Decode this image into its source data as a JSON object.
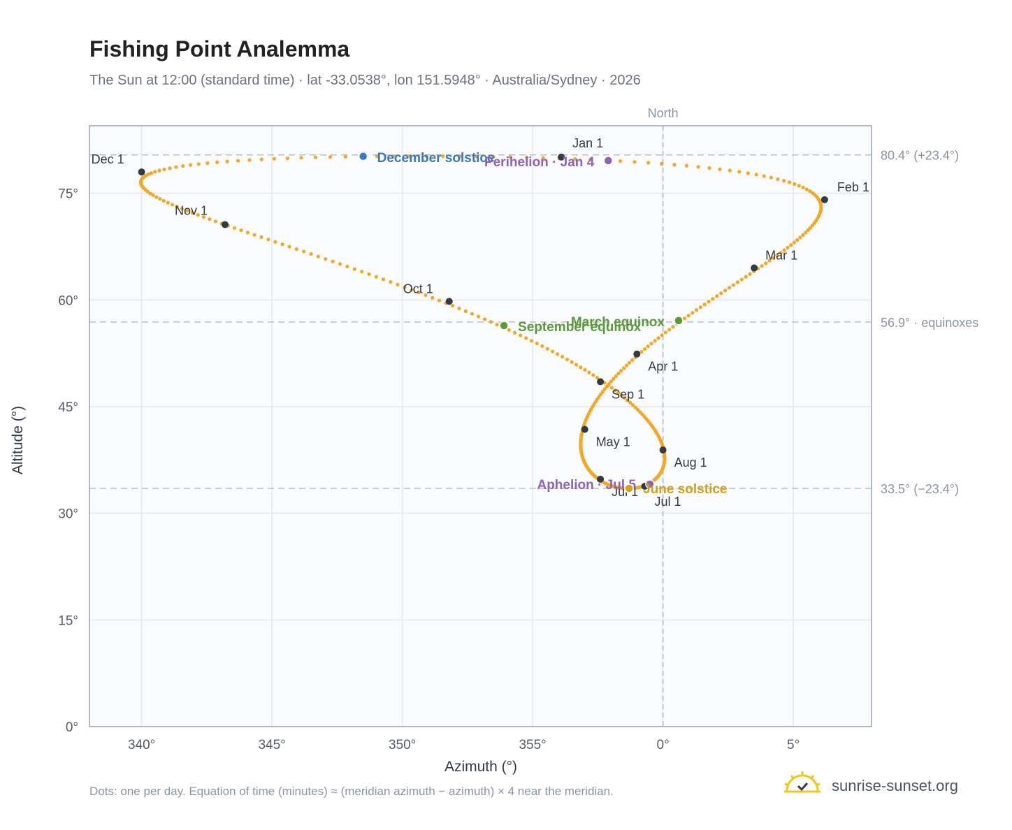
{
  "title": "Fishing Point Analemma",
  "subtitle": "The Sun at 12:00 (standard time) · lat -33.0538°, lon 151.5948° · Australia/Sydney · 2026",
  "footnote": "Dots: one per day. Equation of time (minutes) ≈ (meridian azimuth − azimuth) × 4 near the meridian.",
  "brand": {
    "name": "sunrise-sunset.org",
    "icon": "sun-check-icon"
  },
  "chart_data": {
    "type": "scatter",
    "xlabel": "Azimuth (°)",
    "ylabel": "Altitude (°)",
    "xlim": [
      -22,
      8
    ],
    "ylim": [
      0,
      84.5
    ],
    "xticks": [
      -20,
      -15,
      -10,
      -5,
      0,
      5
    ],
    "xtick_labels": [
      "340°",
      "345°",
      "350°",
      "355°",
      "0°",
      "5°"
    ],
    "yticks": [
      0,
      15,
      30,
      45,
      60,
      75
    ],
    "ytick_labels": [
      "0°",
      "15°",
      "30°",
      "45°",
      "60°",
      "75°"
    ],
    "grid": true,
    "meridian": {
      "x": 0,
      "label": "North"
    },
    "reference_lines": [
      {
        "y": 80.4,
        "label": "80.4° (+23.4°)"
      },
      {
        "y": 56.9,
        "label": "56.9° · equinoxes"
      },
      {
        "y": 33.5,
        "label": "33.5° (−23.4°)"
      }
    ],
    "path_color": "#f5a623",
    "month_marker_color": "#333a44",
    "month_markers": [
      {
        "label": "Jan 1",
        "az": -3.9,
        "alt": 80.1
      },
      {
        "label": "Feb 1",
        "az": 6.2,
        "alt": 74.1
      },
      {
        "label": "Mar 1",
        "az": 3.5,
        "alt": 64.5
      },
      {
        "label": "Apr 1",
        "az": -1.0,
        "alt": 52.4
      },
      {
        "label": "May 1",
        "az": -3.0,
        "alt": 41.8
      },
      {
        "label": "Jul 1",
        "az": -2.4,
        "alt": 34.8
      },
      {
        "label": "Jul 1",
        "az": -0.7,
        "alt": 33.8
      },
      {
        "label": "Aug 1",
        "az": 0.0,
        "alt": 38.9
      },
      {
        "label": "Sep 1",
        "az": -2.4,
        "alt": 48.5
      },
      {
        "label": "Oct 1",
        "az": -8.2,
        "alt": 59.8
      },
      {
        "label": "Nov 1",
        "az": -16.8,
        "alt": 70.6
      },
      {
        "label": "Dec 1",
        "az": -20.0,
        "alt": 78.0
      }
    ],
    "events": [
      {
        "label": "December solstice",
        "az": -11.5,
        "alt": 80.2,
        "color": "#3a78c2"
      },
      {
        "label": "Perihelion · Jan 4",
        "az": -2.1,
        "alt": 79.6,
        "color": "#8e62b8"
      },
      {
        "label": "March equinox",
        "az": 0.6,
        "alt": 57.1,
        "color": "#5a9a3a"
      },
      {
        "label": "September equinox",
        "az": -6.1,
        "alt": 56.4,
        "color": "#5a9a3a"
      },
      {
        "label": "Aphelion · Jul 5",
        "az": -0.5,
        "alt": 34.1,
        "color": "#8e62b8"
      },
      {
        "label": "June solstice",
        "az": -1.3,
        "alt": 33.5,
        "color": "#d4a017"
      }
    ]
  }
}
